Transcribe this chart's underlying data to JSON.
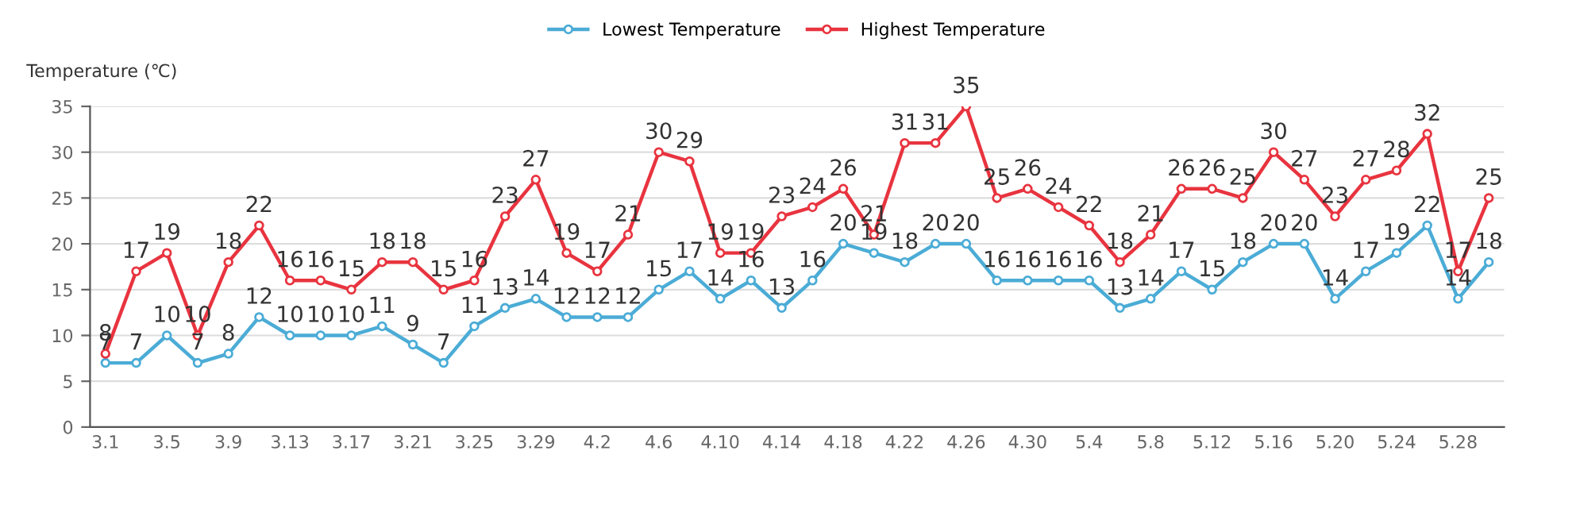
{
  "chart_data": {
    "type": "line",
    "ylabel": "Temperature (℃)",
    "categories": [
      "3.1",
      null,
      "3.5",
      null,
      "3.9",
      null,
      "3.13",
      null,
      "3.17",
      null,
      "3.21",
      null,
      "3.25",
      null,
      "3.29",
      null,
      "4.2",
      null,
      "4.6",
      null,
      "4.10",
      null,
      "4.14",
      null,
      "4.18",
      null,
      "4.22",
      null,
      "4.26",
      null,
      "4.30",
      null,
      "5.4",
      null,
      "5.8",
      null,
      "5.12",
      null,
      "5.16",
      null,
      "5.20",
      null,
      "5.24",
      null,
      "5.28",
      null
    ],
    "series": [
      {
        "name": "Lowest Temperature",
        "color": "#4bacd6",
        "values": [
          7,
          7,
          10,
          7,
          8,
          12,
          10,
          10,
          10,
          11,
          9,
          7,
          11,
          13,
          14,
          12,
          12,
          12,
          15,
          17,
          14,
          16,
          13,
          16,
          20,
          19,
          18,
          20,
          20,
          16,
          16,
          16,
          16,
          13,
          14,
          17,
          15,
          18,
          20,
          20,
          14,
          17,
          19,
          22,
          14,
          18
        ]
      },
      {
        "name": "Highest Temperature",
        "color": "#e8343f",
        "values": [
          8,
          17,
          19,
          10,
          18,
          22,
          16,
          16,
          15,
          18,
          18,
          15,
          16,
          23,
          27,
          19,
          17,
          21,
          30,
          29,
          19,
          19,
          23,
          24,
          26,
          21,
          31,
          31,
          35,
          25,
          26,
          24,
          22,
          18,
          21,
          26,
          26,
          25,
          30,
          27,
          23,
          27,
          28,
          32,
          17,
          25
        ]
      }
    ],
    "ylim": [
      0,
      35
    ],
    "yticks": [
      0,
      5,
      10,
      15,
      20,
      25,
      30,
      35
    ],
    "grid": "y",
    "legend": "top",
    "marker": "circle",
    "line_style": "solid",
    "data_labels": true
  }
}
